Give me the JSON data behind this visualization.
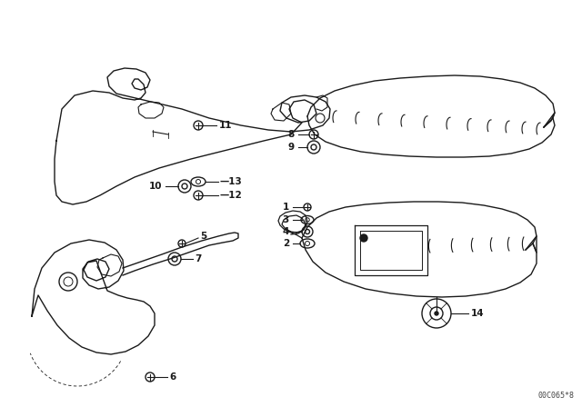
{
  "background_color": "#ffffff",
  "footnote": "00C065*8",
  "line_color": "#1a1a1a",
  "lw": 1.0,
  "fig_w": 6.4,
  "fig_h": 4.48,
  "dpi": 100
}
